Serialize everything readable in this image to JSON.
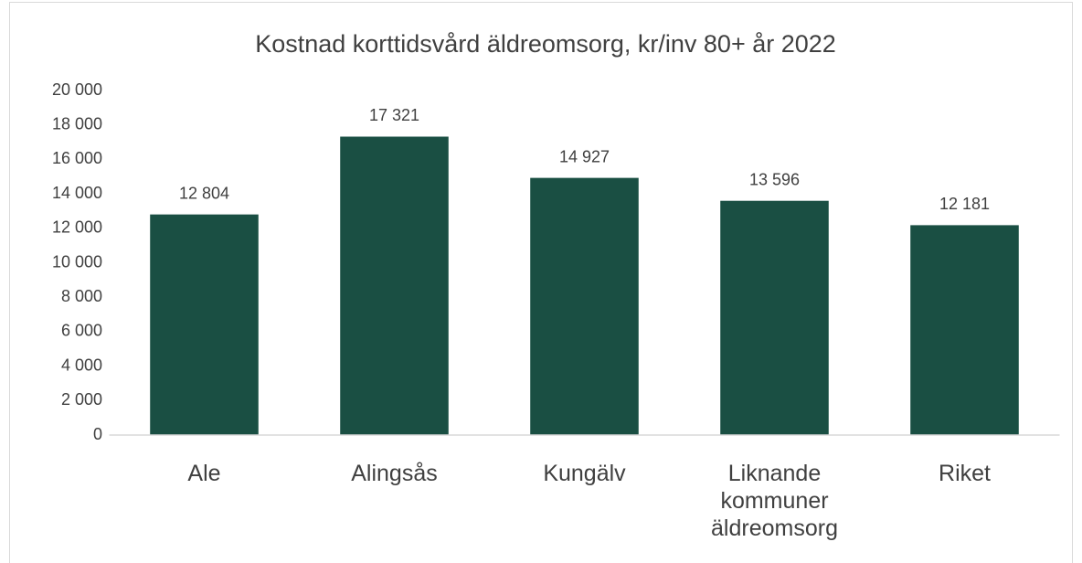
{
  "chart_data": {
    "type": "bar",
    "title": "Kostnad korttidsvård äldreomsorg, kr/inv 80+ år 2022",
    "categories": [
      "Ale",
      "Alingsås",
      "Kungälv",
      "Liknande kommuner äldreomsorg",
      "Riket"
    ],
    "values": [
      12804,
      17321,
      14927,
      13596,
      12181
    ],
    "value_labels": [
      "12 804",
      "17 321",
      "14 927",
      "13 596",
      "12 181"
    ],
    "color": "#1a4f43",
    "ylim": [
      0,
      20000
    ],
    "yticks": [
      0,
      {
        "value": 2000,
        "label": "2 000"
      },
      {
        "value": 4000,
        "label": "4 000"
      },
      {
        "value": 6000,
        "label": "6 000"
      },
      {
        "value": 8000,
        "label": "8 000"
      },
      {
        "value": 10000,
        "label": "10 000"
      },
      {
        "value": 12000,
        "label": "12 000"
      },
      {
        "value": 14000,
        "label": "14 000"
      },
      {
        "value": 16000,
        "label": "16 000"
      },
      {
        "value": 18000,
        "label": "18 000"
      },
      {
        "value": 20000,
        "label": "20 000"
      }
    ],
    "grid": false
  }
}
